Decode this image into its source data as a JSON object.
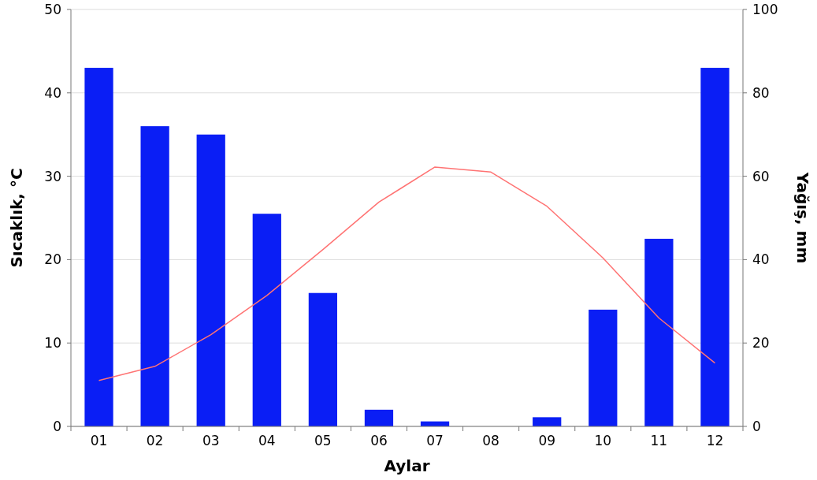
{
  "chart_data": {
    "type": "bar",
    "xlabel": "Aylar",
    "ylabel": "Sıcaklık, °C",
    "y2label": "Yağış, mm",
    "categories": [
      "01",
      "02",
      "03",
      "04",
      "05",
      "06",
      "07",
      "08",
      "09",
      "10",
      "11",
      "12"
    ],
    "series": [
      {
        "axis": "y2",
        "color": "#0a1ef5",
        "values": [
          86,
          72,
          70,
          51,
          32,
          4,
          1.2,
          0,
          2.2,
          28,
          45,
          86
        ]
      },
      {
        "type": "line",
        "axis": "y",
        "color": "#ff7373",
        "values": [
          5.5,
          7.2,
          11,
          15.7,
          21.2,
          26.9,
          31.1,
          30.5,
          26.4,
          20.2,
          13,
          7.6
        ]
      }
    ],
    "ylim": [
      0,
      50
    ],
    "yticks": [
      0,
      10,
      20,
      30,
      40,
      50
    ],
    "y2lim": [
      0,
      100
    ],
    "y2ticks": [
      0,
      20,
      40,
      60,
      80,
      100
    ],
    "grid": "y",
    "marker": "none",
    "line_style": "solid"
  }
}
